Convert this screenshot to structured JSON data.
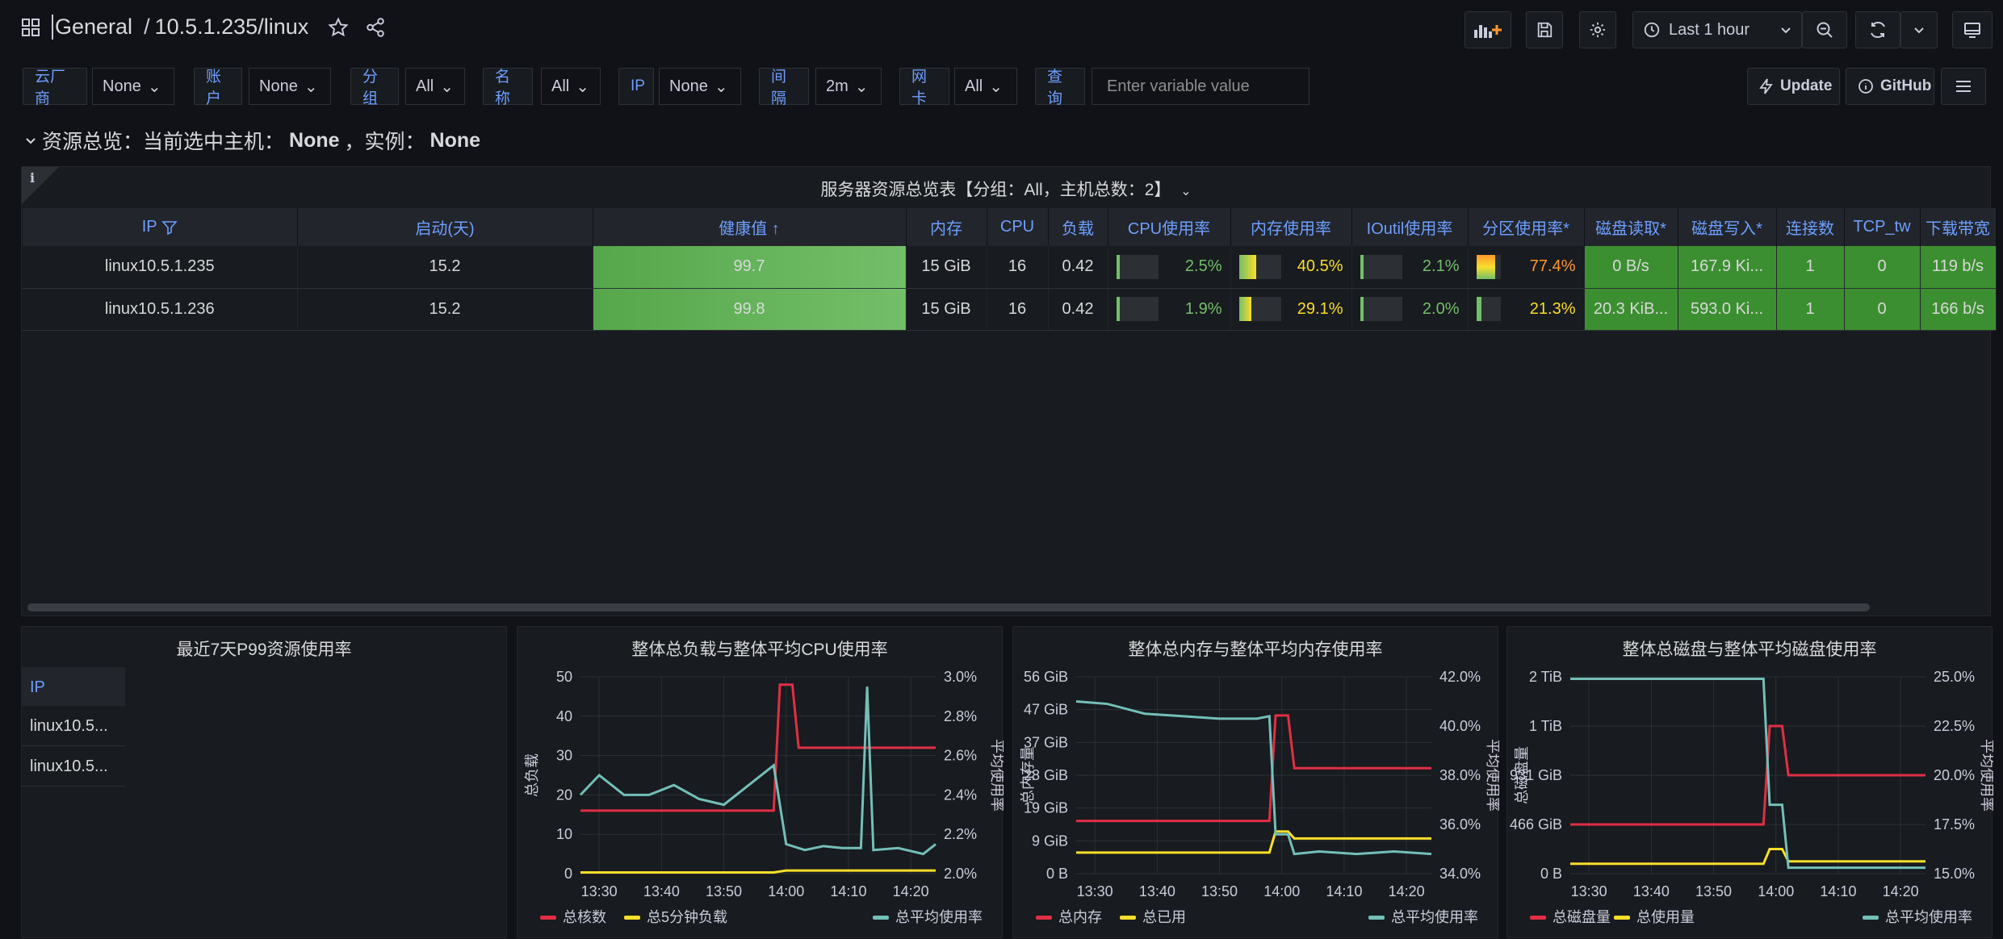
{
  "header": {
    "folder": "General",
    "separator": "/",
    "dashboard": "10.5.1.235/linux",
    "time_range": "Last 1 hour"
  },
  "variables": [
    {
      "label": "云厂商",
      "value": "None"
    },
    {
      "label": "账户",
      "value": "None"
    },
    {
      "label": "分组",
      "value": "All"
    },
    {
      "label": "名称",
      "value": "All"
    },
    {
      "label": "IP",
      "value": "None"
    },
    {
      "label": "间隔",
      "value": "2m"
    },
    {
      "label": "网卡",
      "value": "All"
    }
  ],
  "query": {
    "label": "查询",
    "placeholder": "Enter variable value"
  },
  "links": {
    "update": "Update",
    "github": "GitHub"
  },
  "row": {
    "prefix": "资源总览：当前选中主机：",
    "host": "None",
    "mid": "，实例：",
    "instance": "None"
  },
  "overview": {
    "title": "服务器资源总览表【分组：All，主机总数：2】",
    "info": "i",
    "columns": [
      "IP",
      "启动(天)",
      "健康值",
      "内存",
      "CPU",
      "负载",
      "CPU使用率",
      "内存使用率",
      "IOutil使用率",
      "分区使用率*",
      "磁盘读取*",
      "磁盘写入*",
      "连接数",
      "TCP_tw",
      "下载带宽"
    ],
    "rows": [
      {
        "ip": "linux10.5.1.235",
        "uptime": "15.2",
        "health": "99.7",
        "mem": "15 GiB",
        "cpu": "16",
        "load": "0.42",
        "cpu_pct": "2.5%",
        "mem_pct": "40.5%",
        "io_pct": "2.1%",
        "part_pct": "77.4%",
        "disk_read": "0 B/s",
        "disk_write": "167.9 Ki...",
        "conn": "1",
        "tcp_tw": "0",
        "download": "119 b/s"
      },
      {
        "ip": "linux10.5.1.236",
        "uptime": "15.2",
        "health": "99.8",
        "mem": "15 GiB",
        "cpu": "16",
        "load": "0.42",
        "cpu_pct": "1.9%",
        "mem_pct": "29.1%",
        "io_pct": "2.0%",
        "part_pct": "21.3%",
        "disk_read": "20.3 KiB...",
        "disk_write": "593.0 Ki...",
        "conn": "1",
        "tcp_tw": "0",
        "download": "166 b/s"
      }
    ],
    "levels": {
      "cpu": [
        0.025,
        0.019
      ],
      "mem": [
        0.405,
        0.291
      ],
      "io": [
        0.021,
        0.02
      ],
      "part": [
        0.774,
        0.213
      ]
    }
  },
  "p99": {
    "title": "最近7天P99资源使用率",
    "header": "IP",
    "items": [
      "linux10.5...",
      "linux10.5..."
    ]
  },
  "chart_data": [
    {
      "type": "line",
      "title": "整体总负载与整体平均CPU使用率",
      "x_ticks": [
        "13:30",
        "13:40",
        "13:50",
        "14:00",
        "14:10",
        "14:20"
      ],
      "y_left_ticks": [
        "0",
        "10",
        "20",
        "30",
        "40",
        "50"
      ],
      "y_right_ticks": [
        "2.0%",
        "2.2%",
        "2.4%",
        "2.6%",
        "2.8%",
        "3.0%"
      ],
      "ylabel_left": "总负载",
      "ylabel_right": "平均使用率",
      "ylim_left": [
        0,
        50
      ],
      "ylim_right": [
        2.0,
        3.0
      ],
      "colors": {
        "red": "#f2495c",
        "yellow": "#fade2a",
        "cyan": "#73bfb8"
      },
      "series": [
        {
          "name": "总核数",
          "axis": "left",
          "color": "#e02f44",
          "x": [
            "13:27",
            "13:58",
            "13:59",
            "14:01",
            "14:02",
            "14:24"
          ],
          "values": [
            16,
            16,
            48,
            48,
            32,
            32
          ]
        },
        {
          "name": "总5分钟负载",
          "axis": "left",
          "color": "#fade2a",
          "x": [
            "13:27",
            "13:58",
            "14:00",
            "14:24"
          ],
          "values": [
            0.3,
            0.3,
            0.8,
            0.8
          ]
        },
        {
          "name": "总平均使用率",
          "axis": "right",
          "color": "#73bfb8",
          "x": [
            "13:27",
            "13:30",
            "13:34",
            "13:38",
            "13:42",
            "13:46",
            "13:50",
            "13:54",
            "13:58",
            "14:00",
            "14:03",
            "14:06",
            "14:09",
            "14:12",
            "14:13",
            "14:14",
            "14:18",
            "14:22",
            "14:24"
          ],
          "values": [
            2.4,
            2.5,
            2.4,
            2.4,
            2.45,
            2.38,
            2.35,
            2.45,
            2.55,
            2.15,
            2.12,
            2.14,
            2.13,
            2.13,
            2.95,
            2.12,
            2.13,
            2.1,
            2.15
          ]
        }
      ]
    },
    {
      "type": "line",
      "title": "整体总内存与整体平均内存使用率",
      "x_ticks": [
        "13:30",
        "13:40",
        "13:50",
        "14:00",
        "14:10",
        "14:20"
      ],
      "y_left_ticks": [
        "0 B",
        "9 GiB",
        "19 GiB",
        "28 GiB",
        "37 GiB",
        "47 GiB",
        "56 GiB"
      ],
      "y_right_ticks": [
        "34.0%",
        "36.0%",
        "38.0%",
        "40.0%",
        "42.0%"
      ],
      "ylabel_left": "总内存量",
      "ylabel_right": "平均使用率",
      "ylim_left": [
        0,
        56
      ],
      "ylim_right": [
        34,
        42
      ],
      "series": [
        {
          "name": "总内存",
          "axis": "left",
          "color": "#e02f44",
          "x": [
            "13:27",
            "13:58",
            "13:59",
            "14:01",
            "14:02",
            "14:24"
          ],
          "values": [
            15,
            15,
            45,
            45,
            30,
            30
          ]
        },
        {
          "name": "总已用",
          "axis": "left",
          "color": "#fade2a",
          "x": [
            "13:27",
            "13:58",
            "13:59",
            "14:01",
            "14:02",
            "14:24"
          ],
          "values": [
            6,
            6,
            12,
            12,
            10,
            10
          ]
        },
        {
          "name": "总平均使用率",
          "axis": "right",
          "color": "#73bfb8",
          "x": [
            "13:27",
            "13:32",
            "13:38",
            "13:44",
            "13:50",
            "13:56",
            "13:58",
            "13:59",
            "14:01",
            "14:02",
            "14:06",
            "14:12",
            "14:18",
            "14:24"
          ],
          "values": [
            41.0,
            40.9,
            40.5,
            40.4,
            40.3,
            40.3,
            40.4,
            35.6,
            35.6,
            34.8,
            34.9,
            34.8,
            34.9,
            34.8
          ]
        }
      ]
    },
    {
      "type": "line",
      "title": "整体总磁盘与整体平均磁盘使用率",
      "x_ticks": [
        "13:30",
        "13:40",
        "13:50",
        "14:00",
        "14:10",
        "14:20"
      ],
      "y_left_ticks": [
        "0 B",
        "466 GiB",
        "931 GiB",
        "1 TiB",
        "2 TiB"
      ],
      "y_right_ticks": [
        "15.0%",
        "17.5%",
        "20.0%",
        "22.5%",
        "25.0%"
      ],
      "ylabel_left": "总磁盘量",
      "ylabel_right": "平均使用率",
      "ylim_left": [
        0,
        4
      ],
      "ylim_right": [
        15,
        25
      ],
      "series": [
        {
          "name": "总磁盘量",
          "axis": "left",
          "color": "#e02f44",
          "x": [
            "13:27",
            "13:58",
            "13:59",
            "14:01",
            "14:02",
            "14:24"
          ],
          "values": [
            1.0,
            1.0,
            3.0,
            3.0,
            2.0,
            2.0
          ]
        },
        {
          "name": "总使用量",
          "axis": "left",
          "color": "#fade2a",
          "x": [
            "13:27",
            "13:58",
            "13:59",
            "14:01",
            "14:02",
            "14:24"
          ],
          "values": [
            0.2,
            0.2,
            0.5,
            0.5,
            0.25,
            0.25
          ]
        },
        {
          "name": "总平均使用率",
          "axis": "right",
          "color": "#73bfb8",
          "x": [
            "13:27",
            "13:58",
            "13:59",
            "14:01",
            "14:02",
            "14:24"
          ],
          "values": [
            24.9,
            24.9,
            18.5,
            18.5,
            15.3,
            15.3
          ]
        }
      ]
    }
  ]
}
